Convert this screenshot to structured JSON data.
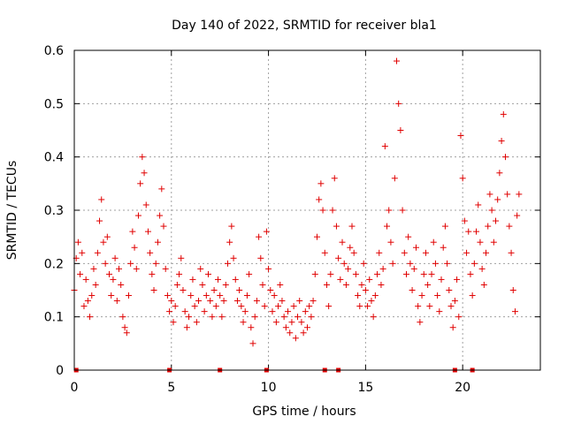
{
  "chart_data": {
    "type": "scatter",
    "title": "Day 140 of 2022, SRMTID for receiver bla1",
    "xlabel": "GPS time / hours",
    "ylabel": "SRMTID / TECUs",
    "xlim": [
      0,
      24
    ],
    "ylim": [
      0,
      0.6
    ],
    "xticks": [
      0,
      5,
      10,
      15,
      20
    ],
    "xtick_labels": [
      "0",
      "5",
      "10",
      "15",
      "20"
    ],
    "yticks": [
      0,
      0.1,
      0.2,
      0.3,
      0.4,
      0.5,
      0.6
    ],
    "ytick_labels": [
      "0",
      "0.1",
      "0.2",
      "0.3",
      "0.4",
      "0.5",
      "0.6"
    ],
    "grid": true,
    "marker": "+",
    "color": "#e00000",
    "series": [
      {
        "name": "SRMTID",
        "points": [
          [
            0.0,
            0.15
          ],
          [
            0.1,
            0.21
          ],
          [
            0.2,
            0.24
          ],
          [
            0.3,
            0.18
          ],
          [
            0.4,
            0.22
          ],
          [
            0.5,
            0.12
          ],
          [
            0.6,
            0.17
          ],
          [
            0.7,
            0.13
          ],
          [
            0.8,
            0.1
          ],
          [
            0.9,
            0.14
          ],
          [
            1.0,
            0.19
          ],
          [
            1.1,
            0.16
          ],
          [
            1.2,
            0.22
          ],
          [
            1.3,
            0.28
          ],
          [
            1.4,
            0.32
          ],
          [
            1.5,
            0.24
          ],
          [
            1.6,
            0.2
          ],
          [
            1.7,
            0.25
          ],
          [
            1.8,
            0.18
          ],
          [
            1.9,
            0.14
          ],
          [
            2.0,
            0.17
          ],
          [
            2.1,
            0.21
          ],
          [
            2.2,
            0.13
          ],
          [
            2.3,
            0.19
          ],
          [
            2.4,
            0.16
          ],
          [
            2.5,
            0.1
          ],
          [
            2.6,
            0.08
          ],
          [
            2.7,
            0.07
          ],
          [
            2.8,
            0.14
          ],
          [
            2.9,
            0.2
          ],
          [
            3.0,
            0.26
          ],
          [
            3.1,
            0.23
          ],
          [
            3.2,
            0.19
          ],
          [
            3.3,
            0.29
          ],
          [
            3.4,
            0.35
          ],
          [
            3.5,
            0.4
          ],
          [
            3.6,
            0.37
          ],
          [
            3.7,
            0.31
          ],
          [
            3.8,
            0.26
          ],
          [
            3.9,
            0.22
          ],
          [
            4.0,
            0.18
          ],
          [
            4.1,
            0.15
          ],
          [
            4.2,
            0.2
          ],
          [
            4.3,
            0.24
          ],
          [
            4.4,
            0.29
          ],
          [
            4.5,
            0.34
          ],
          [
            4.6,
            0.27
          ],
          [
            4.7,
            0.19
          ],
          [
            4.8,
            0.14
          ],
          [
            4.9,
            0.11
          ],
          [
            5.0,
            0.13
          ],
          [
            5.1,
            0.09
          ],
          [
            5.2,
            0.12
          ],
          [
            5.3,
            0.16
          ],
          [
            5.4,
            0.18
          ],
          [
            5.5,
            0.21
          ],
          [
            5.6,
            0.15
          ],
          [
            5.7,
            0.11
          ],
          [
            5.8,
            0.08
          ],
          [
            5.9,
            0.1
          ],
          [
            6.0,
            0.14
          ],
          [
            6.1,
            0.17
          ],
          [
            6.2,
            0.12
          ],
          [
            6.3,
            0.09
          ],
          [
            6.4,
            0.13
          ],
          [
            6.5,
            0.19
          ],
          [
            6.6,
            0.16
          ],
          [
            6.7,
            0.11
          ],
          [
            6.8,
            0.14
          ],
          [
            6.9,
            0.18
          ],
          [
            7.0,
            0.13
          ],
          [
            7.1,
            0.1
          ],
          [
            7.2,
            0.15
          ],
          [
            7.3,
            0.12
          ],
          [
            7.4,
            0.17
          ],
          [
            7.5,
            0.14
          ],
          [
            7.6,
            0.1
          ],
          [
            7.7,
            0.13
          ],
          [
            7.8,
            0.16
          ],
          [
            7.9,
            0.2
          ],
          [
            8.0,
            0.24
          ],
          [
            8.1,
            0.27
          ],
          [
            8.2,
            0.21
          ],
          [
            8.3,
            0.17
          ],
          [
            8.4,
            0.13
          ],
          [
            8.5,
            0.15
          ],
          [
            8.6,
            0.12
          ],
          [
            8.7,
            0.09
          ],
          [
            8.8,
            0.11
          ],
          [
            8.9,
            0.14
          ],
          [
            9.0,
            0.18
          ],
          [
            9.1,
            0.08
          ],
          [
            9.2,
            0.05
          ],
          [
            9.3,
            0.1
          ],
          [
            9.4,
            0.13
          ],
          [
            9.5,
            0.25
          ],
          [
            9.6,
            0.21
          ],
          [
            9.7,
            0.16
          ],
          [
            9.8,
            0.12
          ],
          [
            9.9,
            0.26
          ],
          [
            10.0,
            0.19
          ],
          [
            10.1,
            0.15
          ],
          [
            10.2,
            0.11
          ],
          [
            10.3,
            0.14
          ],
          [
            10.4,
            0.09
          ],
          [
            10.5,
            0.12
          ],
          [
            10.6,
            0.16
          ],
          [
            10.7,
            0.13
          ],
          [
            10.8,
            0.1
          ],
          [
            10.9,
            0.08
          ],
          [
            11.0,
            0.11
          ],
          [
            11.1,
            0.07
          ],
          [
            11.2,
            0.09
          ],
          [
            11.3,
            0.12
          ],
          [
            11.4,
            0.06
          ],
          [
            11.5,
            0.1
          ],
          [
            11.6,
            0.13
          ],
          [
            11.7,
            0.09
          ],
          [
            11.8,
            0.07
          ],
          [
            11.9,
            0.11
          ],
          [
            12.0,
            0.08
          ],
          [
            12.1,
            0.12
          ],
          [
            12.2,
            0.1
          ],
          [
            12.3,
            0.13
          ],
          [
            12.4,
            0.18
          ],
          [
            12.5,
            0.25
          ],
          [
            12.6,
            0.32
          ],
          [
            12.7,
            0.35
          ],
          [
            12.8,
            0.3
          ],
          [
            12.9,
            0.22
          ],
          [
            13.0,
            0.16
          ],
          [
            13.1,
            0.12
          ],
          [
            13.2,
            0.18
          ],
          [
            13.3,
            0.3
          ],
          [
            13.4,
            0.36
          ],
          [
            13.5,
            0.27
          ],
          [
            13.6,
            0.21
          ],
          [
            13.7,
            0.17
          ],
          [
            13.8,
            0.24
          ],
          [
            13.9,
            0.2
          ],
          [
            14.0,
            0.16
          ],
          [
            14.1,
            0.19
          ],
          [
            14.2,
            0.23
          ],
          [
            14.3,
            0.27
          ],
          [
            14.4,
            0.22
          ],
          [
            14.5,
            0.18
          ],
          [
            14.6,
            0.14
          ],
          [
            14.7,
            0.12
          ],
          [
            14.8,
            0.16
          ],
          [
            14.9,
            0.2
          ],
          [
            15.0,
            0.15
          ],
          [
            15.1,
            0.12
          ],
          [
            15.2,
            0.17
          ],
          [
            15.3,
            0.13
          ],
          [
            15.4,
            0.1
          ],
          [
            15.5,
            0.14
          ],
          [
            15.6,
            0.18
          ],
          [
            15.7,
            0.22
          ],
          [
            15.8,
            0.16
          ],
          [
            15.9,
            0.19
          ],
          [
            16.0,
            0.42
          ],
          [
            16.1,
            0.27
          ],
          [
            16.2,
            0.3
          ],
          [
            16.3,
            0.24
          ],
          [
            16.4,
            0.2
          ],
          [
            16.5,
            0.36
          ],
          [
            16.6,
            0.58
          ],
          [
            16.7,
            0.5
          ],
          [
            16.8,
            0.45
          ],
          [
            16.9,
            0.3
          ],
          [
            17.0,
            0.22
          ],
          [
            17.1,
            0.18
          ],
          [
            17.2,
            0.25
          ],
          [
            17.3,
            0.2
          ],
          [
            17.4,
            0.15
          ],
          [
            17.5,
            0.19
          ],
          [
            17.6,
            0.23
          ],
          [
            17.7,
            0.12
          ],
          [
            17.8,
            0.09
          ],
          [
            17.9,
            0.14
          ],
          [
            18.0,
            0.18
          ],
          [
            18.1,
            0.22
          ],
          [
            18.2,
            0.16
          ],
          [
            18.3,
            0.12
          ],
          [
            18.4,
            0.18
          ],
          [
            18.5,
            0.24
          ],
          [
            18.6,
            0.2
          ],
          [
            18.7,
            0.14
          ],
          [
            18.8,
            0.11
          ],
          [
            18.9,
            0.17
          ],
          [
            19.0,
            0.23
          ],
          [
            19.1,
            0.27
          ],
          [
            19.2,
            0.2
          ],
          [
            19.3,
            0.15
          ],
          [
            19.4,
            0.12
          ],
          [
            19.5,
            0.08
          ],
          [
            19.6,
            0.13
          ],
          [
            19.7,
            0.17
          ],
          [
            19.8,
            0.1
          ],
          [
            19.9,
            0.44
          ],
          [
            20.0,
            0.36
          ],
          [
            20.1,
            0.28
          ],
          [
            20.2,
            0.22
          ],
          [
            20.3,
            0.26
          ],
          [
            20.4,
            0.18
          ],
          [
            20.5,
            0.14
          ],
          [
            20.6,
            0.2
          ],
          [
            20.7,
            0.26
          ],
          [
            20.8,
            0.31
          ],
          [
            20.9,
            0.24
          ],
          [
            21.0,
            0.19
          ],
          [
            21.1,
            0.16
          ],
          [
            21.2,
            0.22
          ],
          [
            21.3,
            0.27
          ],
          [
            21.4,
            0.33
          ],
          [
            21.5,
            0.3
          ],
          [
            21.6,
            0.24
          ],
          [
            21.7,
            0.28
          ],
          [
            21.8,
            0.32
          ],
          [
            21.9,
            0.37
          ],
          [
            22.0,
            0.43
          ],
          [
            22.1,
            0.48
          ],
          [
            22.2,
            0.4
          ],
          [
            22.3,
            0.33
          ],
          [
            22.4,
            0.27
          ],
          [
            22.5,
            0.22
          ],
          [
            22.6,
            0.15
          ],
          [
            22.7,
            0.11
          ],
          [
            22.8,
            0.29
          ],
          [
            22.9,
            0.33
          ]
        ]
      }
    ],
    "zero_markers_x": [
      0.1,
      4.9,
      7.5,
      9.9,
      12.9,
      13.6,
      19.6,
      20.5
    ]
  }
}
